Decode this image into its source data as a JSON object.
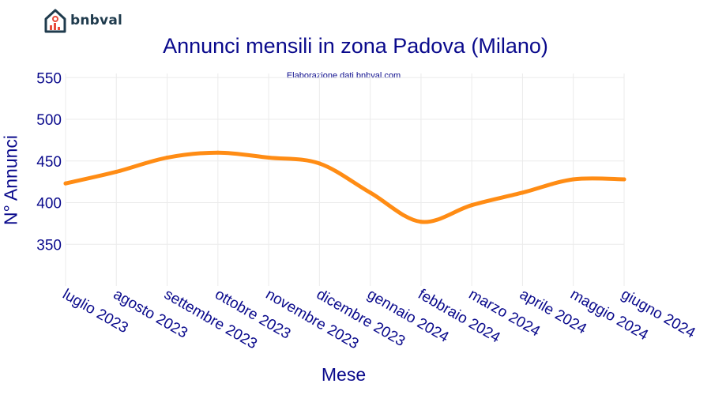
{
  "logo": {
    "text": "bnbval",
    "icon": "house-chart-icon"
  },
  "chart_data": {
    "type": "line",
    "title": "Annunci mensili in zona Padova (Milano)",
    "subtitle": "Elaborazione dati bnbval.com",
    "xlabel": "Mese",
    "ylabel": "N° Annunci",
    "categories": [
      "luglio 2023",
      "agosto 2023",
      "settembre 2023",
      "ottobre 2023",
      "novembre 2023",
      "dicembre 2023",
      "gennaio 2024",
      "febbraio 2024",
      "marzo 2024",
      "aprile 2024",
      "maggio 2024",
      "giugno 2024"
    ],
    "series": [
      {
        "values": [
          423,
          437,
          454,
          460,
          454,
          447,
          412,
          377,
          397,
          412,
          428,
          428
        ],
        "color": "#ff8c14"
      }
    ],
    "ylim": [
      300,
      555
    ],
    "yticks": [
      350,
      400,
      450,
      500,
      550
    ],
    "grid": true
  }
}
